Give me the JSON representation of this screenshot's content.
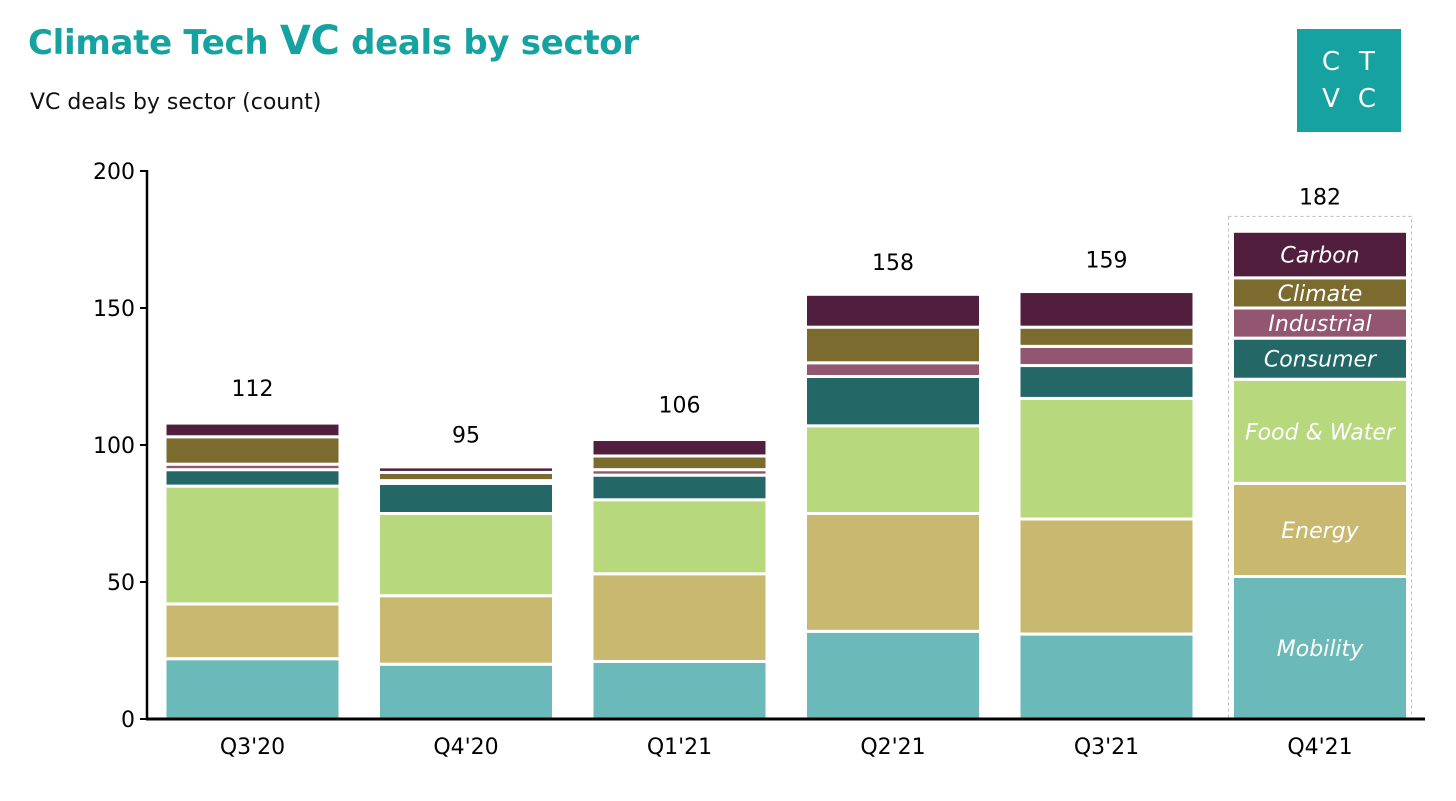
{
  "header": {
    "title_part1": "Climate Tech ",
    "title_vc": "VC",
    "title_part2": " deals by sector",
    "subtitle": "VC deals by sector (count)"
  },
  "logo": {
    "letters": [
      "C",
      "T",
      "V",
      "C"
    ],
    "color": "#17a2a2"
  },
  "chart_data": {
    "type": "bar",
    "stacked": true,
    "title": "Climate Tech VC deals by sector",
    "subtitle": "VC deals by sector (count)",
    "categories": [
      "Q3'20",
      "Q4'20",
      "Q1'21",
      "Q2'21",
      "Q3'21",
      "Q4'21"
    ],
    "ylim": [
      0,
      200
    ],
    "yticks": [
      0,
      50,
      100,
      150,
      200
    ],
    "totals": [
      112,
      95,
      106,
      158,
      159,
      182
    ],
    "series": [
      {
        "name": "Mobility",
        "color": "#6bbab9",
        "values": [
          22,
          20,
          21,
          32,
          31,
          52
        ]
      },
      {
        "name": "Energy",
        "color": "#c8b870",
        "values": [
          20,
          25,
          32,
          43,
          42,
          34
        ]
      },
      {
        "name": "Food & Water",
        "color": "#b7d87c",
        "values": [
          43,
          30,
          27,
          32,
          44,
          38
        ]
      },
      {
        "name": "Consumer",
        "color": "#236866",
        "values": [
          6,
          11,
          9,
          18,
          12,
          15
        ]
      },
      {
        "name": "Industrial",
        "color": "#925671",
        "values": [
          2,
          1,
          2,
          5,
          7,
          11
        ]
      },
      {
        "name": "Climate",
        "color": "#7c6b2f",
        "values": [
          10,
          3,
          5,
          13,
          7,
          11
        ]
      },
      {
        "name": "Carbon",
        "color": "#521e3d",
        "values": [
          5,
          2,
          6,
          12,
          13,
          17
        ]
      }
    ],
    "legend": "inline labels inside last bar (Q4'21)",
    "grid": false
  }
}
